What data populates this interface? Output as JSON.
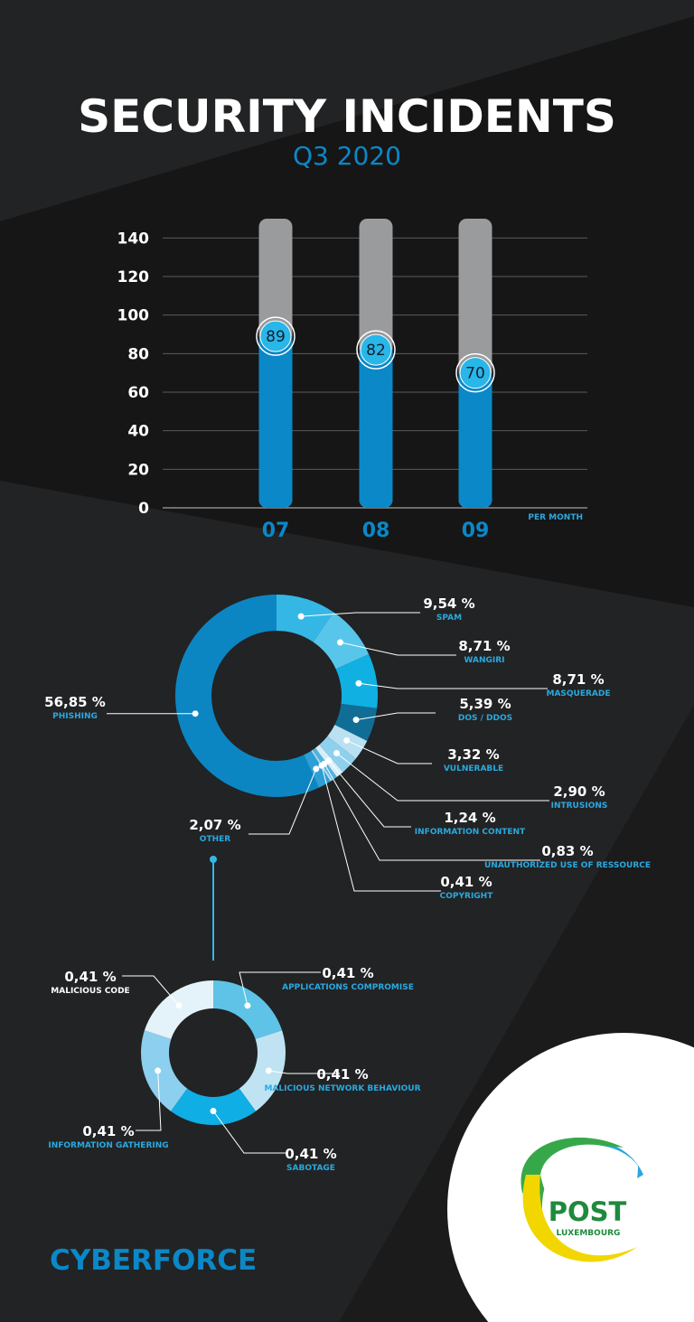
{
  "header": {
    "title": "SECURITY INCIDENTS",
    "subtitle": "Q3 2020"
  },
  "colors": {
    "background": "#222324",
    "accent": "#0a88c8",
    "accent_light": "#29a9e1",
    "bar_track": "#9a9b9d",
    "dark_band": "#161616"
  },
  "chart_data": [
    {
      "type": "bar",
      "categories": [
        "07",
        "08",
        "09"
      ],
      "values": [
        89,
        82,
        70
      ],
      "ylim": [
        0,
        150
      ],
      "yticks": [
        0,
        20,
        40,
        60,
        80,
        100,
        120,
        140
      ],
      "xlabel": "PER MONTH",
      "ylabel": "",
      "grid": true
    },
    {
      "type": "pie",
      "donut": true,
      "slices": [
        {
          "label": "SPAM",
          "value": 9.54,
          "text": "9,54 %",
          "color": "#35b7e6"
        },
        {
          "label": "WANGIRI",
          "value": 8.71,
          "text": "8,71 %",
          "color": "#58c6ea"
        },
        {
          "label": "MASQUERADE",
          "value": 8.71,
          "text": "8,71 %",
          "color": "#10b0e3"
        },
        {
          "label": "DOS / DDOS",
          "value": 5.39,
          "text": "5,39 %",
          "color": "#106e96"
        },
        {
          "label": "VULNERABLE",
          "value": 3.32,
          "text": "3,32 %",
          "color": "#b9e1f2"
        },
        {
          "label": "INTRUSIONS",
          "value": 2.9,
          "text": "2,90 %",
          "color": "#8fd0ee"
        },
        {
          "label": "INFORMATION CONTENT",
          "value": 1.24,
          "text": "1,24 %",
          "color": "#d7eef8"
        },
        {
          "label": "UNAUTHORIZED USE OF RESSOURCE",
          "value": 0.83,
          "text": "0,83 %",
          "color": "#4fb3e0"
        },
        {
          "label": "COPYRIGHT",
          "value": 0.41,
          "text": "0,41 %",
          "color": "#a9daf0"
        },
        {
          "label": "OTHER",
          "value": 2.07,
          "text": "2,07 %",
          "color": "#2b9fd6"
        },
        {
          "label": "PHISHING",
          "value": 56.85,
          "text": "56,85 %",
          "color": "#0c86c3"
        }
      ]
    },
    {
      "type": "pie",
      "donut": true,
      "slices": [
        {
          "label": "APPLICATIONS COMPROMISE",
          "value": 0.41,
          "text": "0,41 %",
          "color": "#5ec3e6"
        },
        {
          "label": "MALICIOUS NETWORK BEHAVIOUR",
          "value": 0.41,
          "text": "0,41 %",
          "color": "#bfe3f3"
        },
        {
          "label": "SABOTAGE",
          "value": 0.41,
          "text": "0,41 %",
          "color": "#0faee4"
        },
        {
          "label": "INFORMATION GATHERING",
          "value": 0.41,
          "text": "0,41 %",
          "color": "#8ccfee"
        },
        {
          "label": "MALICIOUS CODE",
          "value": 0.41,
          "text": "0,41 %",
          "color": "#e4f3fa"
        }
      ]
    }
  ],
  "footer": {
    "brand": "CYBERFORCE",
    "logo_word": "POST",
    "logo_sub": "LUXEMBOURG"
  }
}
